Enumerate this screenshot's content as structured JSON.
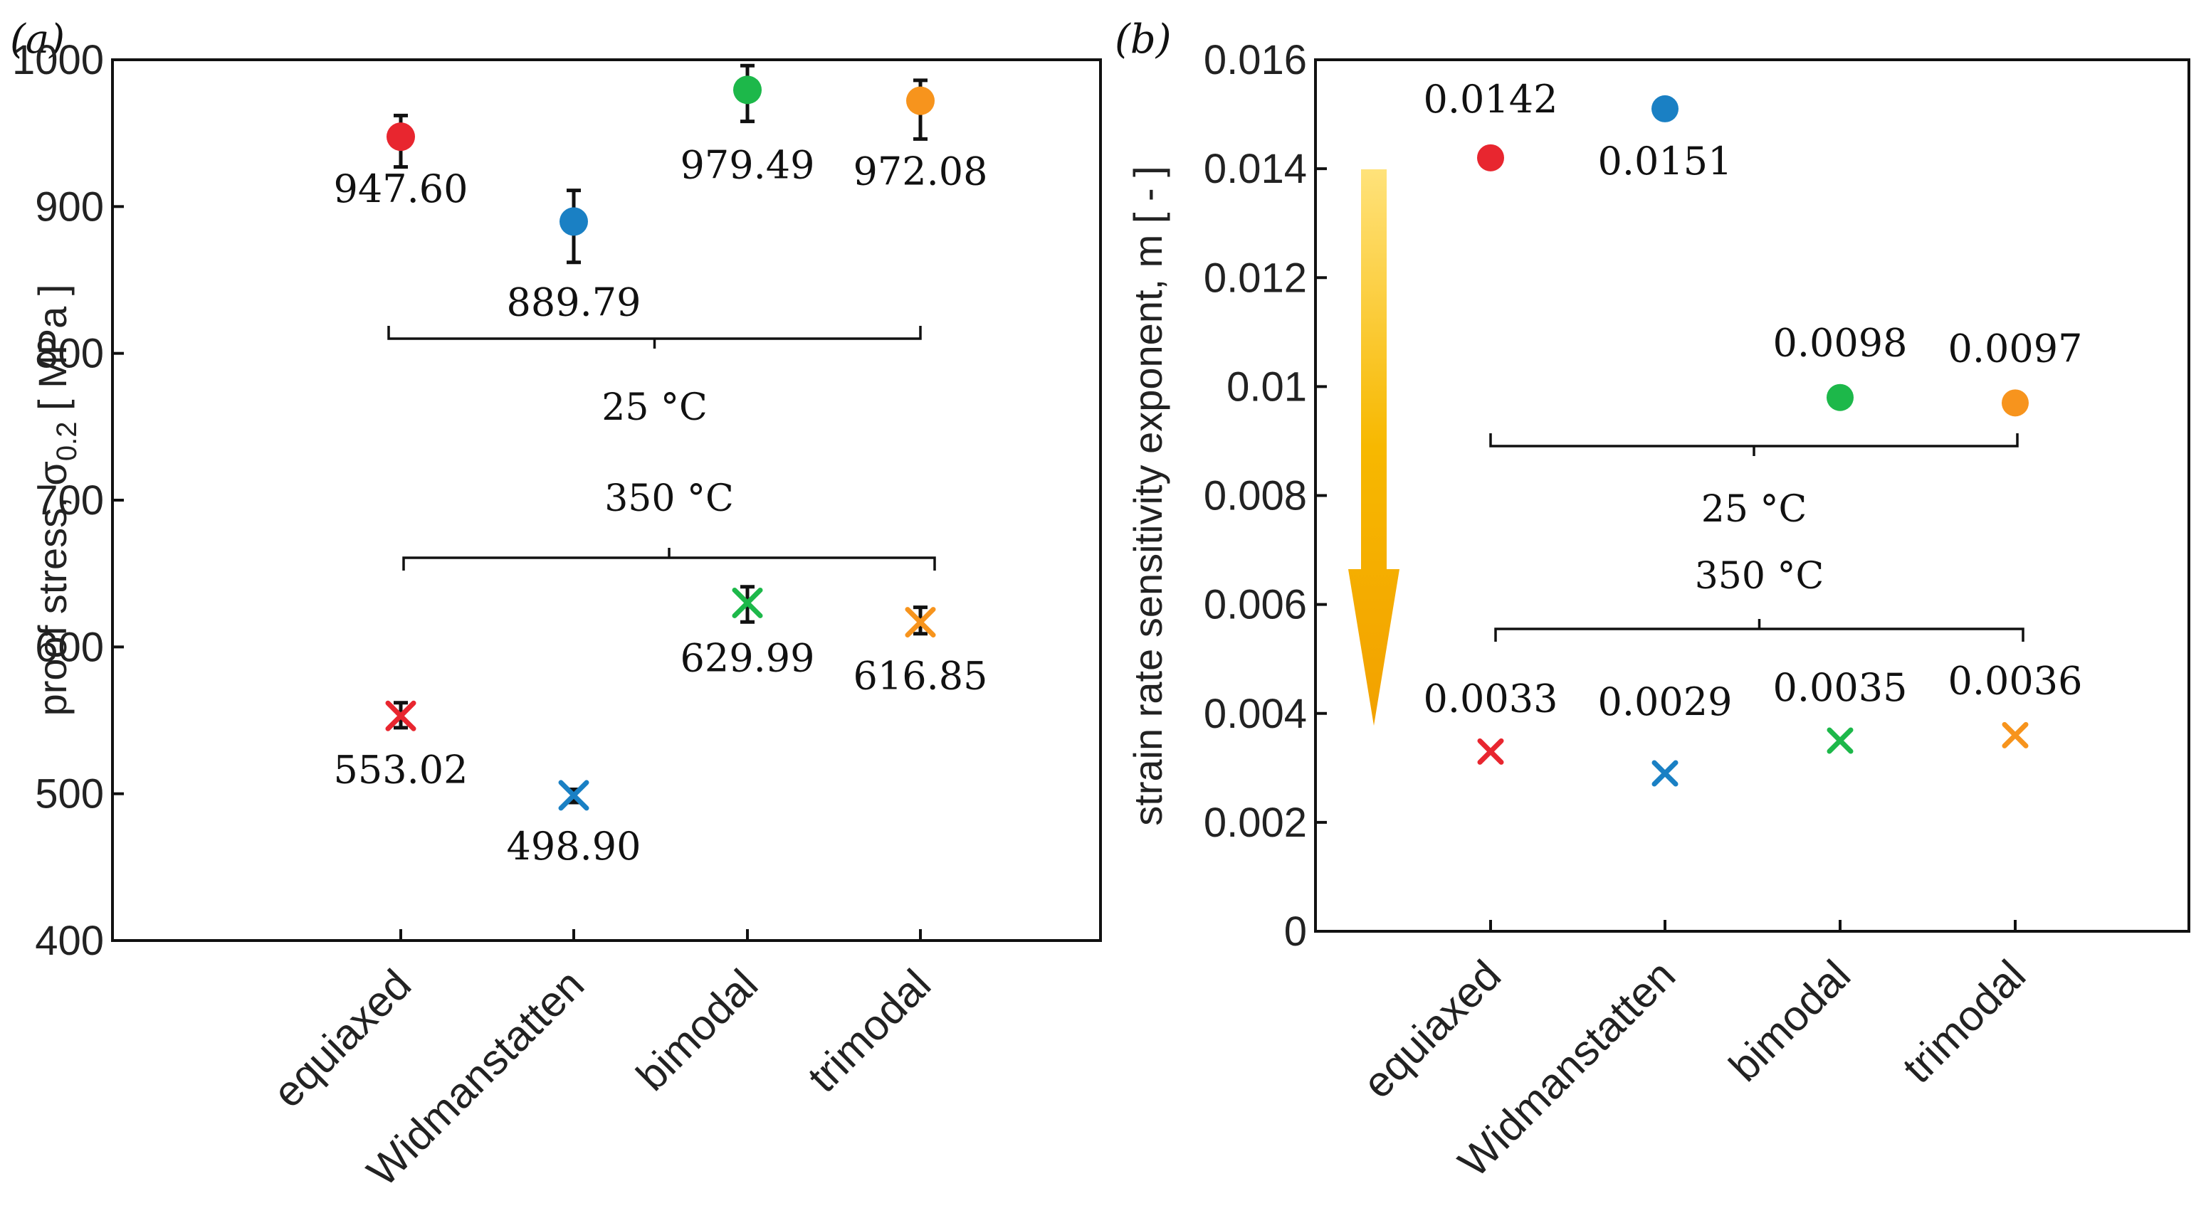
{
  "chart_data": [
    {
      "type": "scatter",
      "panel_label": "(a)",
      "ylabel": "proof stress, σ",
      "ylabel_subscript": "0.2",
      "ylabel_unit": " [ MPa ]",
      "ylim": [
        400,
        1000
      ],
      "yticks": [
        400,
        500,
        600,
        700,
        800,
        900,
        1000
      ],
      "categories": [
        "equiaxed",
        "Widmanstatten",
        "bimodal",
        "trimodal"
      ],
      "colors": [
        "#e8262f",
        "#1a80c4",
        "#1db84a",
        "#f7941d"
      ],
      "groups": [
        "25 °C",
        "350 °C"
      ],
      "series": [
        {
          "name": "25 °C",
          "marker": "circle",
          "values": [
            947.6,
            889.79,
            979.49,
            972.08
          ],
          "labels": [
            "947.60",
            "889.79",
            "979.49",
            "972.08"
          ],
          "err_low": [
            927,
            862,
            958,
            946
          ],
          "err_high": [
            962,
            911,
            996,
            986
          ]
        },
        {
          "name": "350 °C",
          "marker": "x",
          "values": [
            553.02,
            498.9,
            629.99,
            616.85
          ],
          "labels": [
            "553.02",
            "498.90",
            "629.99",
            "616.85"
          ],
          "err_low": [
            545,
            494,
            617,
            609
          ],
          "err_high": [
            562,
            503,
            641,
            627
          ]
        }
      ]
    },
    {
      "type": "scatter",
      "panel_label": "(b)",
      "ylabel": "strain rate sensitivity exponent, m [ - ]",
      "ylim": [
        0,
        0.016
      ],
      "yticks": [
        0,
        0.002,
        0.004,
        0.006,
        0.008,
        0.01,
        0.012,
        0.014,
        0.016
      ],
      "ytick_labels": [
        "0",
        "0.002",
        "0.004",
        "0.006",
        "0.008",
        "0.01",
        "0.012",
        "0.014",
        "0.016"
      ],
      "categories": [
        "equiaxed",
        "Widmanstatten",
        "bimodal",
        "trimodal"
      ],
      "colors": [
        "#e8262f",
        "#1a80c4",
        "#1db84a",
        "#f7941d"
      ],
      "groups": [
        "25 °C",
        "350 °C"
      ],
      "arrow_color": "#f5b800",
      "series": [
        {
          "name": "25 °C",
          "marker": "circle",
          "values": [
            0.0142,
            0.0151,
            0.0098,
            0.0097
          ],
          "labels": [
            "0.0142",
            "0.0151",
            "0.0098",
            "0.0097"
          ]
        },
        {
          "name": "350 °C",
          "marker": "x",
          "values": [
            0.0033,
            0.0029,
            0.0035,
            0.0036
          ],
          "labels": [
            "0.0033",
            "0.0029",
            "0.0035",
            "0.0036"
          ]
        }
      ]
    }
  ]
}
